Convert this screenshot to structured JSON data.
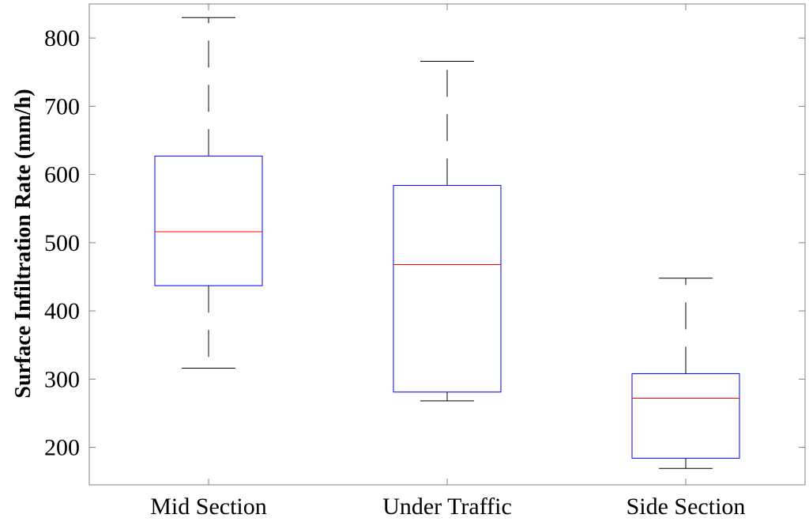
{
  "chart_data": {
    "type": "box",
    "title": "",
    "xlabel": "",
    "ylabel": "Surface Infiltration Rate (mm/h)",
    "ylim": [
      145,
      850
    ],
    "yticks": [
      200,
      300,
      400,
      500,
      600,
      700,
      800
    ],
    "grid": false,
    "categories": [
      "Mid Section",
      "Under Traffic",
      "Side Section"
    ],
    "boxes": [
      {
        "category": "Mid Section",
        "whisker_low": 316,
        "q1": 437,
        "median": 516,
        "q3": 627,
        "whisker_high": 830
      },
      {
        "category": "Under Traffic",
        "whisker_low": 268,
        "q1": 281,
        "median": 468,
        "q3": 584,
        "whisker_high": 766
      },
      {
        "category": "Side Section",
        "whisker_low": 169,
        "q1": 184,
        "median": 272,
        "q3": 308,
        "whisker_high": 448
      }
    ],
    "colors": {
      "box": "#0000ff",
      "median": "#ff0000",
      "whisker": "#000000",
      "axes": "#808080"
    }
  }
}
